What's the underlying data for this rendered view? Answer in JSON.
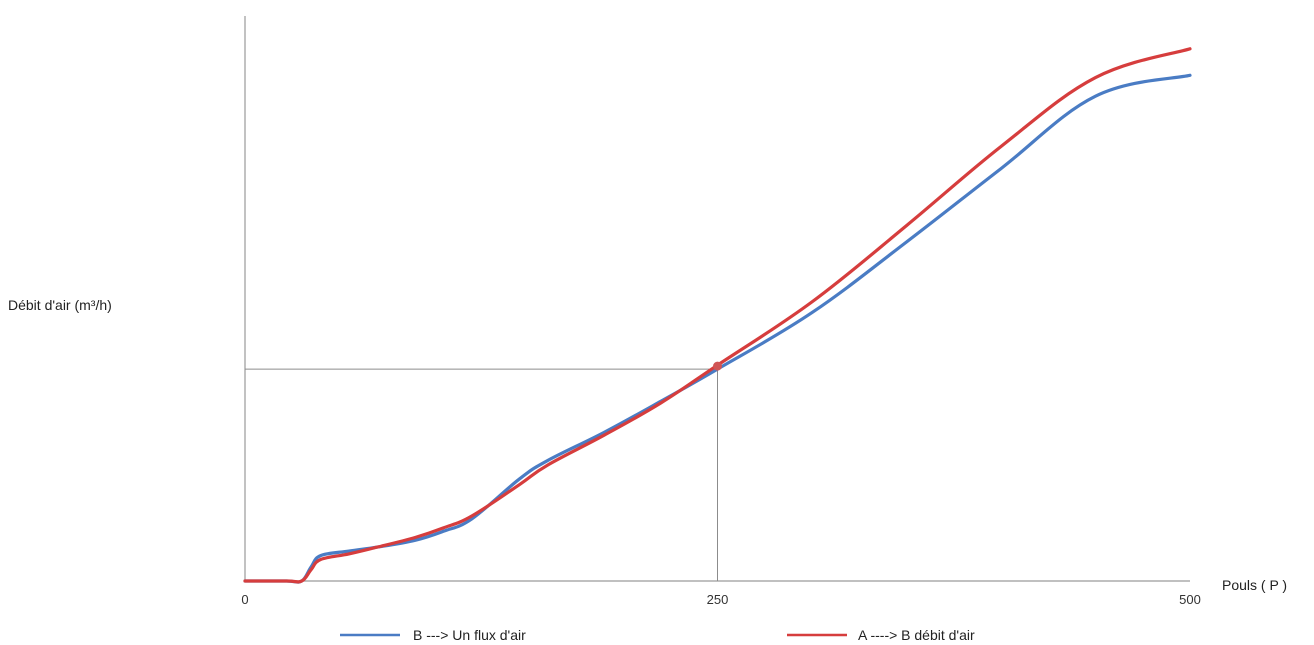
{
  "chart_data": {
    "type": "line",
    "title": "",
    "xlabel": "Pouls ( P )",
    "ylabel": "Débit d'air (m³/h)",
    "xlim": [
      0,
      500
    ],
    "ylim": [
      0,
      100
    ],
    "x_ticks": [
      "0",
      "250",
      "500"
    ],
    "grid": false,
    "legend_position": "bottom",
    "reference_point": {
      "x": 250,
      "y": 37.5
    },
    "series": [
      {
        "name": "B ---> Un flux d'air",
        "color": "#4a7cc4",
        "x": [
          0,
          22,
          30,
          35,
          40,
          55,
          70,
          90,
          105,
          120,
          145,
          160,
          190,
          220,
          250,
          300,
          350,
          400,
          450,
          500
        ],
        "y": [
          0,
          0,
          0,
          2.5,
          4.5,
          5.3,
          6.0,
          7.2,
          8.8,
          11.0,
          18.0,
          21.3,
          26.3,
          31.8,
          37.5,
          47.5,
          60.0,
          73.0,
          85.8,
          89.5
        ]
      },
      {
        "name": "A ----> B débit d'air",
        "color": "#d63d3d",
        "x": [
          0,
          22,
          30,
          35,
          40,
          55,
          70,
          90,
          105,
          120,
          145,
          160,
          190,
          220,
          250,
          300,
          350,
          400,
          450,
          500
        ],
        "y": [
          0,
          0,
          0,
          2.0,
          3.8,
          4.8,
          6.0,
          7.7,
          9.4,
          11.5,
          17.0,
          20.5,
          25.8,
          31.5,
          38.2,
          49.4,
          62.9,
          76.9,
          89.1,
          94.2
        ]
      }
    ]
  }
}
